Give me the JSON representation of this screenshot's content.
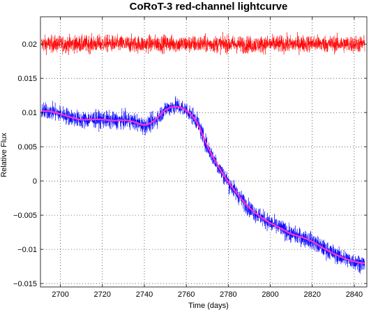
{
  "chart_data": {
    "type": "line",
    "title": "CoRoT-3 red-channel lightcurve",
    "xlabel": "Time (days)",
    "ylabel": "Relative Flux",
    "xlim": [
      2690.5,
      2846
    ],
    "ylim": [
      -0.0155,
      0.024
    ],
    "grid": true,
    "x_ticks": [
      2700,
      2720,
      2740,
      2760,
      2780,
      2800,
      2820,
      2840
    ],
    "y_ticks": [
      -0.015,
      -0.01,
      -0.005,
      0,
      0.005,
      0.01,
      0.015,
      0.02
    ],
    "x_tick_labels": [
      "2700",
      "2720",
      "2740",
      "2760",
      "2780",
      "2800",
      "2820",
      "2840"
    ],
    "y_tick_labels": [
      "−0.015",
      "−0.01",
      "−0.005",
      "0",
      "0.005",
      "0.01",
      "0.015",
      "0.02"
    ],
    "series": [
      {
        "style": "noisy-band",
        "color": "#ff0000",
        "noise_amplitude": 0.0022,
        "x": [
          2691,
          2700,
          2710,
          2720,
          2730,
          2740,
          2750,
          2760,
          2770,
          2780,
          2790,
          2800,
          2810,
          2820,
          2830,
          2845
        ],
        "values": [
          0.02,
          0.02,
          0.02,
          0.0201,
          0.02,
          0.02,
          0.0201,
          0.02,
          0.02,
          0.02,
          0.0199,
          0.02,
          0.02,
          0.0201,
          0.02,
          0.02
        ]
      },
      {
        "style": "noisy-band",
        "color": "#0000ff",
        "noise_amplitude": 0.0022,
        "x": [
          2691,
          2695,
          2700,
          2705,
          2710,
          2715,
          2720,
          2725,
          2730,
          2735,
          2740,
          2745,
          2750,
          2755,
          2760,
          2765,
          2770,
          2775,
          2780,
          2785,
          2790,
          2795,
          2800,
          2805,
          2810,
          2815,
          2820,
          2825,
          2830,
          2835,
          2840,
          2845
        ],
        "values": [
          0.0102,
          0.0102,
          0.0098,
          0.0093,
          0.0089,
          0.009,
          0.009,
          0.0088,
          0.0089,
          0.0087,
          0.008,
          0.0088,
          0.0105,
          0.011,
          0.0104,
          0.0088,
          0.005,
          0.0022,
          -0.0002,
          -0.0022,
          -0.004,
          -0.0052,
          -0.0062,
          -0.0069,
          -0.0078,
          -0.0082,
          -0.0088,
          -0.0098,
          -0.0106,
          -0.0113,
          -0.0118,
          -0.0121
        ]
      },
      {
        "style": "smooth-fit",
        "color": "#ff33cc",
        "x": [
          2691,
          2695,
          2700,
          2705,
          2710,
          2715,
          2720,
          2725,
          2730,
          2735,
          2740,
          2745,
          2750,
          2755,
          2760,
          2765,
          2770,
          2775,
          2780,
          2785,
          2790,
          2795,
          2800,
          2805,
          2810,
          2815,
          2820,
          2825,
          2830,
          2835,
          2840,
          2845
        ],
        "values": [
          0.0102,
          0.0102,
          0.0098,
          0.0093,
          0.0089,
          0.009,
          0.009,
          0.0088,
          0.0089,
          0.0087,
          0.008,
          0.0088,
          0.0105,
          0.011,
          0.0104,
          0.0088,
          0.005,
          0.0022,
          -0.0002,
          -0.0022,
          -0.004,
          -0.0052,
          -0.0062,
          -0.0069,
          -0.0078,
          -0.0082,
          -0.0088,
          -0.0098,
          -0.0106,
          -0.0113,
          -0.0118,
          -0.0121
        ]
      }
    ]
  }
}
